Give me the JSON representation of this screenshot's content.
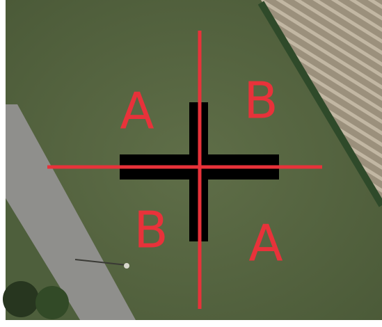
{
  "quadrant_labels": {
    "top_left": "A",
    "top_right": "B",
    "bottom_left": "B",
    "bottom_right": "A"
  }
}
